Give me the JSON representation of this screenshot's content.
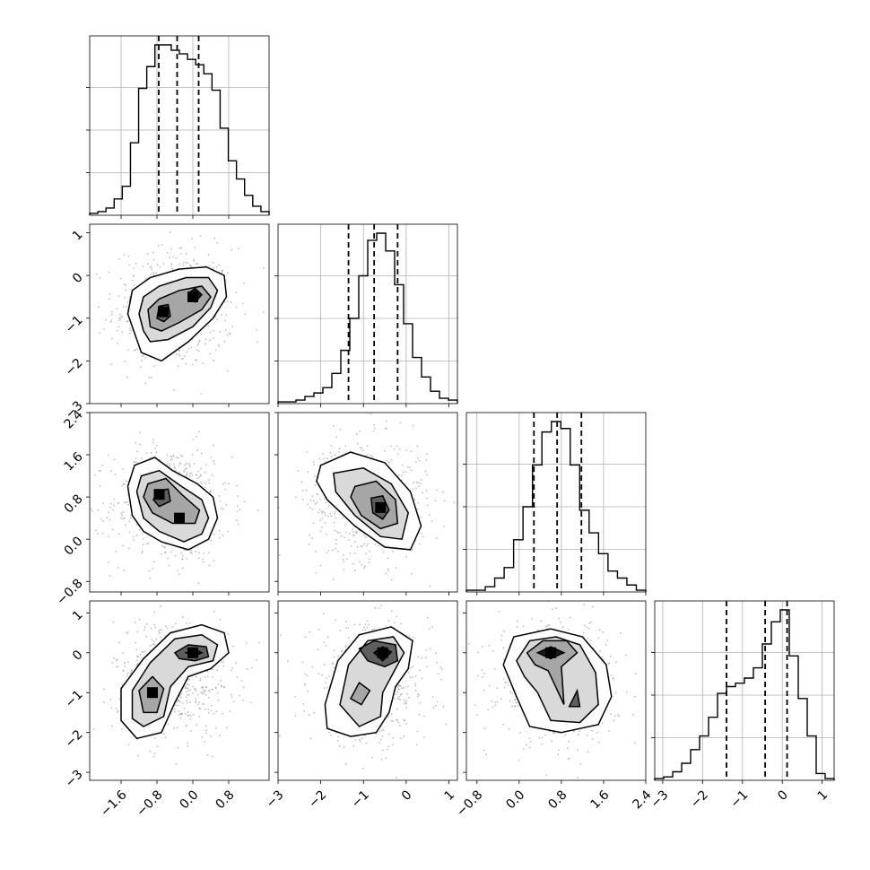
{
  "chart_data": {
    "type": "corner",
    "parameters": [
      {
        "range": [
          -2.3,
          1.7
        ],
        "ticks": [
          -1.6,
          -0.8,
          0.0,
          0.8
        ],
        "tick_labels": [
          "−1.6",
          "−0.8",
          "0.0",
          "0.8"
        ],
        "quantiles": [
          -0.76,
          -0.35,
          0.13
        ]
      },
      {
        "range": [
          -3.0,
          1.2
        ],
        "ticks": [
          -3,
          -2,
          -1,
          0,
          1
        ],
        "tick_labels": [
          "−3",
          "−2",
          "−1",
          "0",
          "1"
        ],
        "quantiles": [
          -1.35,
          -0.75,
          -0.2
        ]
      },
      {
        "range": [
          -1.0,
          2.4
        ],
        "ticks": [
          -0.8,
          0.0,
          0.8,
          1.6,
          2.4
        ],
        "tick_labels": [
          "−0.8",
          "0.0",
          "0.8",
          "1.6",
          "2.4"
        ],
        "quantiles": [
          0.28,
          0.72,
          1.18
        ]
      },
      {
        "range": [
          -3.2,
          1.3
        ],
        "ticks": [
          -3,
          -2,
          -1,
          0,
          1
        ],
        "tick_labels": [
          "−3",
          "−2",
          "−1",
          "0",
          "1"
        ],
        "quantiles": [
          -1.4,
          -0.43,
          0.12
        ]
      }
    ],
    "histograms": [
      {
        "counts": [
          1,
          2,
          4,
          9,
          16,
          40,
          70,
          82,
          94,
          94,
          91,
          89,
          86,
          83,
          78,
          69,
          48,
          30,
          20,
          11,
          5,
          2
        ]
      },
      {
        "counts": [
          1,
          1,
          2,
          4,
          6,
          9,
          17,
          30,
          48,
          72,
          92,
          96,
          86,
          67,
          45,
          26,
          15,
          7,
          3,
          2
        ]
      },
      {
        "counts": [
          1,
          1,
          3,
          8,
          14,
          30,
          49,
          73,
          92,
          98,
          94,
          73,
          47,
          34,
          22,
          12,
          8,
          4,
          1
        ]
      },
      {
        "counts": [
          1,
          2,
          5,
          10,
          18,
          26,
          37,
          51,
          55,
          57,
          60,
          66,
          80,
          93,
          100,
          73,
          48,
          26,
          4,
          1
        ]
      }
    ],
    "pairs": [
      {
        "x_param": 0,
        "y_param": 1,
        "peaks": [
          [
            -0.66,
            -0.85
          ],
          [
            0.0,
            -0.5
          ]
        ],
        "levels": [
          [
            [
              -1.3,
              -1.35
            ],
            [
              -1.45,
              -0.9
            ],
            [
              -1.35,
              -0.35
            ],
            [
              -0.95,
              -0.05
            ],
            [
              -0.3,
              0.15
            ],
            [
              0.3,
              0.2
            ],
            [
              0.7,
              0.0
            ],
            [
              0.75,
              -0.5
            ],
            [
              0.45,
              -1.0
            ],
            [
              -0.1,
              -1.55
            ],
            [
              -0.7,
              -2.0
            ],
            [
              -1.15,
              -1.8
            ]
          ],
          [
            [
              -1.1,
              -1.3
            ],
            [
              -1.2,
              -0.9
            ],
            [
              -1.1,
              -0.5
            ],
            [
              -0.75,
              -0.25
            ],
            [
              -0.15,
              -0.05
            ],
            [
              0.35,
              -0.05
            ],
            [
              0.55,
              -0.35
            ],
            [
              0.4,
              -0.75
            ],
            [
              0.0,
              -1.2
            ],
            [
              -0.55,
              -1.5
            ],
            [
              -0.95,
              -1.55
            ]
          ],
          [
            [
              -0.95,
              -1.2
            ],
            [
              -1.0,
              -0.8
            ],
            [
              -0.75,
              -0.55
            ],
            [
              -0.3,
              -0.35
            ],
            [
              0.2,
              -0.25
            ],
            [
              0.4,
              -0.5
            ],
            [
              0.2,
              -0.8
            ],
            [
              -0.3,
              -1.1
            ],
            [
              -0.7,
              -1.3
            ]
          ],
          [
            [
              -0.8,
              -1.0
            ],
            [
              -0.75,
              -0.72
            ],
            [
              -0.55,
              -0.68
            ],
            [
              -0.5,
              -0.95
            ],
            [
              -0.65,
              -1.08
            ]
          ],
          [
            [
              -0.1,
              -0.42
            ],
            [
              0.05,
              -0.3
            ],
            [
              0.2,
              -0.45
            ],
            [
              0.05,
              -0.62
            ]
          ]
        ]
      },
      {
        "x_param": 0,
        "y_param": 2,
        "peaks": [
          [
            -0.75,
            0.85
          ],
          [
            -0.3,
            0.4
          ]
        ],
        "levels": [
          [
            [
              -1.3,
              1.4
            ],
            [
              -0.85,
              1.55
            ],
            [
              -0.45,
              1.3
            ],
            [
              0.1,
              1.05
            ],
            [
              0.45,
              0.8
            ],
            [
              0.55,
              0.4
            ],
            [
              0.35,
              0.0
            ],
            [
              -0.1,
              -0.2
            ],
            [
              -0.7,
              -0.05
            ],
            [
              -1.1,
              0.15
            ],
            [
              -1.35,
              0.45
            ],
            [
              -1.45,
              1.0
            ]
          ],
          [
            [
              -1.15,
              1.2
            ],
            [
              -0.75,
              1.3
            ],
            [
              -0.25,
              1.0
            ],
            [
              0.2,
              0.75
            ],
            [
              0.35,
              0.4
            ],
            [
              0.2,
              0.1
            ],
            [
              -0.2,
              -0.05
            ],
            [
              -0.75,
              0.15
            ],
            [
              -1.1,
              0.4
            ],
            [
              -1.25,
              0.9
            ]
          ],
          [
            [
              -1.0,
              1.05
            ],
            [
              -0.6,
              1.15
            ],
            [
              -0.25,
              0.85
            ],
            [
              0.15,
              0.55
            ],
            [
              0.05,
              0.3
            ],
            [
              -0.45,
              0.3
            ],
            [
              -0.9,
              0.5
            ],
            [
              -1.1,
              0.8
            ]
          ],
          [
            [
              -0.8,
              0.92
            ],
            [
              -0.55,
              0.95
            ],
            [
              -0.5,
              0.72
            ],
            [
              -0.75,
              0.62
            ],
            [
              -0.88,
              0.75
            ]
          ]
        ]
      },
      {
        "x_param": 1,
        "y_param": 2,
        "peaks": [
          [
            -0.6,
            0.6
          ]
        ],
        "levels": [
          [
            [
              -2.0,
              1.4
            ],
            [
              -1.3,
              1.65
            ],
            [
              -0.5,
              1.45
            ],
            [
              0.1,
              0.9
            ],
            [
              0.35,
              0.25
            ],
            [
              0.1,
              -0.2
            ],
            [
              -0.5,
              -0.15
            ],
            [
              -1.2,
              0.25
            ],
            [
              -1.85,
              0.75
            ],
            [
              -2.1,
              1.1
            ]
          ],
          [
            [
              -1.7,
              1.25
            ],
            [
              -1.0,
              1.35
            ],
            [
              -0.35,
              1.05
            ],
            [
              0.05,
              0.5
            ],
            [
              -0.1,
              0.0
            ],
            [
              -0.6,
              0.05
            ],
            [
              -1.2,
              0.45
            ],
            [
              -1.65,
              0.9
            ]
          ],
          [
            [
              -1.2,
              1.0
            ],
            [
              -0.7,
              1.1
            ],
            [
              -0.25,
              0.75
            ],
            [
              -0.2,
              0.3
            ],
            [
              -0.6,
              0.2
            ],
            [
              -1.05,
              0.45
            ],
            [
              -1.3,
              0.8
            ]
          ],
          [
            [
              -0.82,
              0.78
            ],
            [
              -0.55,
              0.82
            ],
            [
              -0.4,
              0.55
            ],
            [
              -0.55,
              0.38
            ],
            [
              -0.78,
              0.5
            ]
          ]
        ]
      },
      {
        "x_param": 0,
        "y_param": 3,
        "peaks": [
          [
            0.0,
            0.0
          ],
          [
            -0.9,
            -1.0
          ]
        ],
        "levels": [
          [
            [
              -1.6,
              -1.7
            ],
            [
              -1.6,
              -0.9
            ],
            [
              -1.1,
              -0.15
            ],
            [
              -0.5,
              0.5
            ],
            [
              0.2,
              0.7
            ],
            [
              0.7,
              0.5
            ],
            [
              0.8,
              0.0
            ],
            [
              0.4,
              -0.4
            ],
            [
              -0.1,
              -0.6
            ],
            [
              -0.4,
              -1.25
            ],
            [
              -0.7,
              -2.0
            ],
            [
              -1.25,
              -2.15
            ]
          ],
          [
            [
              -1.35,
              -1.65
            ],
            [
              -1.35,
              -0.95
            ],
            [
              -0.95,
              -0.25
            ],
            [
              -0.4,
              0.35
            ],
            [
              0.2,
              0.45
            ],
            [
              0.55,
              0.2
            ],
            [
              0.45,
              -0.2
            ],
            [
              -0.1,
              -0.35
            ],
            [
              -0.5,
              -0.85
            ],
            [
              -0.65,
              -1.6
            ],
            [
              -1.1,
              -1.85
            ]
          ],
          [
            [
              -1.1,
              -1.5
            ],
            [
              -1.2,
              -0.95
            ],
            [
              -0.9,
              -0.6
            ],
            [
              -0.65,
              -0.9
            ],
            [
              -0.8,
              -1.5
            ]
          ],
          [
            [
              -0.4,
              0.0
            ],
            [
              -0.1,
              0.2
            ],
            [
              0.3,
              0.15
            ],
            [
              0.35,
              -0.1
            ],
            [
              0.05,
              -0.2
            ],
            [
              -0.3,
              -0.15
            ]
          ],
          [
            [
              -0.15,
              0.0
            ],
            [
              0.05,
              0.08
            ],
            [
              0.2,
              0.0
            ],
            [
              0.05,
              -0.08
            ]
          ]
        ]
      },
      {
        "x_param": 1,
        "y_param": 3,
        "peaks": [
          [
            -0.55,
            0.0
          ]
        ],
        "levels": [
          [
            [
              -1.9,
              -1.3
            ],
            [
              -1.6,
              -0.2
            ],
            [
              -1.1,
              0.45
            ],
            [
              -0.35,
              0.65
            ],
            [
              0.15,
              0.3
            ],
            [
              0.05,
              -0.4
            ],
            [
              -0.25,
              -0.85
            ],
            [
              -0.4,
              -1.5
            ],
            [
              -0.7,
              -2.0
            ],
            [
              -1.3,
              -2.1
            ],
            [
              -1.85,
              -1.9
            ]
          ],
          [
            [
              -1.55,
              -1.3
            ],
            [
              -1.35,
              -0.3
            ],
            [
              -0.9,
              0.3
            ],
            [
              -0.3,
              0.4
            ],
            [
              -0.05,
              0.0
            ],
            [
              -0.3,
              -0.5
            ],
            [
              -0.55,
              -1.0
            ],
            [
              -0.6,
              -1.6
            ],
            [
              -1.1,
              -1.85
            ]
          ],
          [
            [
              -1.3,
              -1.15
            ],
            [
              -1.1,
              -0.75
            ],
            [
              -0.85,
              -0.95
            ],
            [
              -1.05,
              -1.3
            ]
          ],
          [
            [
              -1.1,
              0.1
            ],
            [
              -0.75,
              0.3
            ],
            [
              -0.25,
              0.2
            ],
            [
              -0.2,
              -0.2
            ],
            [
              -0.5,
              -0.35
            ],
            [
              -0.9,
              -0.2
            ]
          ],
          [
            [
              -0.75,
              0.0
            ],
            [
              -0.55,
              0.15
            ],
            [
              -0.35,
              0.02
            ],
            [
              -0.55,
              -0.2
            ]
          ]
        ]
      },
      {
        "x_param": 2,
        "y_param": 3,
        "peaks": [
          [
            0.6,
            0.0
          ]
        ],
        "levels": [
          [
            [
              -0.3,
              -0.3
            ],
            [
              -0.1,
              0.4
            ],
            [
              0.6,
              0.6
            ],
            [
              1.2,
              0.4
            ],
            [
              1.65,
              -0.3
            ],
            [
              1.75,
              -1.1
            ],
            [
              1.5,
              -1.8
            ],
            [
              0.8,
              -2.0
            ],
            [
              0.2,
              -1.85
            ],
            [
              -0.05,
              -1.1
            ]
          ],
          [
            [
              -0.05,
              -0.2
            ],
            [
              0.2,
              0.3
            ],
            [
              0.7,
              0.4
            ],
            [
              1.15,
              0.2
            ],
            [
              1.45,
              -0.5
            ],
            [
              1.5,
              -1.3
            ],
            [
              1.15,
              -1.75
            ],
            [
              0.6,
              -1.7
            ],
            [
              0.35,
              -1.0
            ],
            [
              0.1,
              -0.6
            ]
          ],
          [
            [
              0.15,
              0.0
            ],
            [
              0.45,
              0.3
            ],
            [
              0.9,
              0.3
            ],
            [
              1.1,
              0.0
            ],
            [
              0.8,
              -0.35
            ],
            [
              0.85,
              -1.3
            ],
            [
              0.55,
              -0.45
            ],
            [
              0.3,
              -0.3
            ]
          ],
          [
            [
              0.95,
              -1.35
            ],
            [
              1.1,
              -0.95
            ],
            [
              1.15,
              -1.35
            ]
          ],
          [
            [
              0.35,
              0.0
            ],
            [
              0.6,
              0.15
            ],
            [
              0.85,
              0.0
            ],
            [
              0.6,
              -0.15
            ]
          ]
        ]
      }
    ],
    "grid": true,
    "layout": "lower-triangle 4x4"
  }
}
